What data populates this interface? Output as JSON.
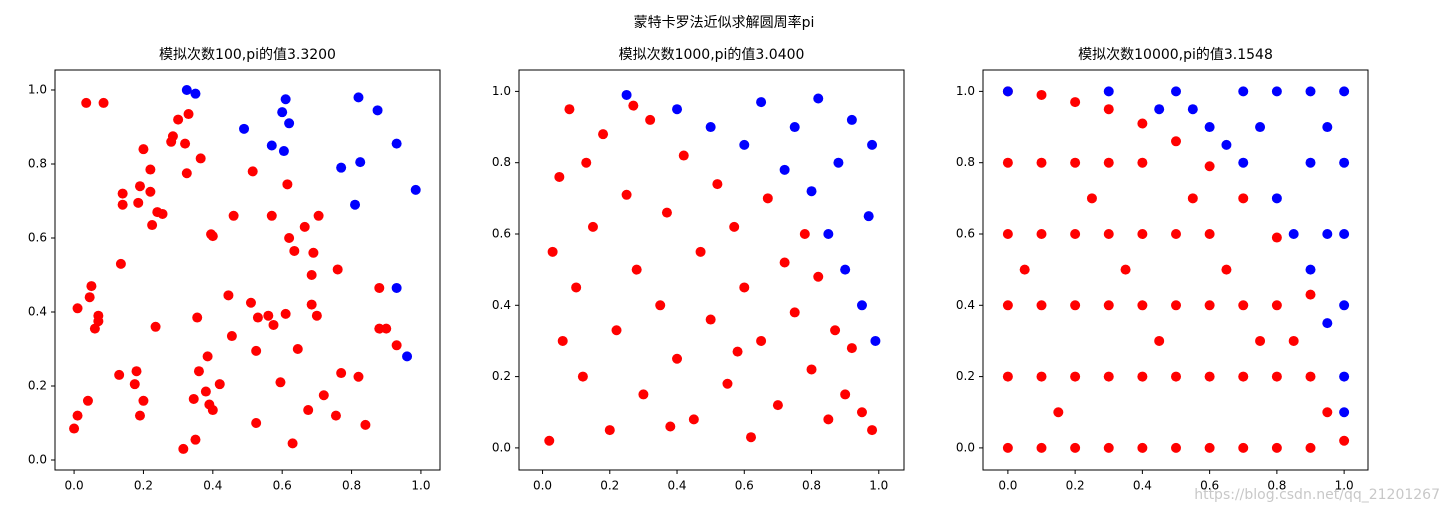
{
  "suptitle": "蒙特卡罗法近似求解圆周率pi",
  "watermark": "https://blog.csdn.net/qq_21201267",
  "chart_data": [
    {
      "type": "scatter",
      "title": "模拟次数100,pi的值3.3200",
      "xlim": [
        -0.055,
        1.055
      ],
      "ylim": [
        -0.027,
        1.054
      ],
      "xticks": [
        {
          "value": 0,
          "label": "0.0"
        },
        0.2,
        0.4,
        0.6,
        0.8,
        {
          "value": 1,
          "label": "1.0"
        }
      ],
      "yticks": [
        {
          "value": 0,
          "label": "0.0"
        },
        0.2,
        0.4,
        0.6,
        0.8,
        {
          "value": 1,
          "label": "1.0"
        }
      ],
      "series": [
        {
          "color": "#ff0000",
          "x": [
            0.01,
            0.0,
            0.01,
            0.04,
            0.035,
            0.085,
            0.05,
            0.045,
            0.06,
            0.07,
            0.07,
            0.13,
            0.135,
            0.14,
            0.14,
            0.18,
            0.175,
            0.19,
            0.185,
            0.19,
            0.2,
            0.2,
            0.22,
            0.22,
            0.225,
            0.24,
            0.255,
            0.235,
            0.28,
            0.285,
            0.3,
            0.32,
            0.325,
            0.33,
            0.315,
            0.35,
            0.345,
            0.355,
            0.36,
            0.365,
            0.38,
            0.385,
            0.39,
            0.395,
            0.4,
            0.4,
            0.42,
            0.445,
            0.455,
            0.46,
            0.51,
            0.515,
            0.525,
            0.53,
            0.525,
            0.56,
            0.57,
            0.575,
            0.595,
            0.61,
            0.62,
            0.615,
            0.63,
            0.635,
            0.645,
            0.665,
            0.675,
            0.685,
            0.69,
            0.685,
            0.7,
            0.705,
            0.72,
            0.76,
            0.755,
            0.77,
            0.82,
            0.84,
            0.88,
            0.88,
            0.9,
            0.93
          ],
          "y": [
            0.12,
            0.085,
            0.41,
            0.16,
            0.965,
            0.965,
            0.47,
            0.44,
            0.355,
            0.375,
            0.39,
            0.23,
            0.53,
            0.72,
            0.69,
            0.24,
            0.205,
            0.12,
            0.695,
            0.74,
            0.84,
            0.16,
            0.785,
            0.725,
            0.635,
            0.67,
            0.665,
            0.36,
            0.86,
            0.875,
            0.92,
            0.855,
            0.775,
            0.935,
            0.03,
            0.055,
            0.165,
            0.385,
            0.24,
            0.815,
            0.185,
            0.28,
            0.15,
            0.61,
            0.605,
            0.135,
            0.205,
            0.445,
            0.335,
            0.66,
            0.425,
            0.78,
            0.295,
            0.385,
            0.1,
            0.39,
            0.66,
            0.365,
            0.21,
            0.395,
            0.6,
            0.745,
            0.045,
            0.565,
            0.3,
            0.63,
            0.135,
            0.5,
            0.56,
            0.42,
            0.39,
            0.66,
            0.175,
            0.515,
            0.12,
            0.235,
            0.225,
            0.095,
            0.465,
            0.355,
            0.355,
            0.31
          ]
        },
        {
          "color": "#0000ff",
          "x": [
            0.325,
            0.35,
            0.49,
            0.57,
            0.6,
            0.605,
            0.61,
            0.62,
            0.77,
            0.81,
            0.82,
            0.825,
            0.875,
            0.93,
            0.93,
            0.96,
            0.985
          ],
          "y": [
            1.0,
            0.99,
            0.895,
            0.85,
            0.94,
            0.835,
            0.975,
            0.91,
            0.79,
            0.69,
            0.98,
            0.805,
            0.945,
            0.855,
            0.465,
            0.28,
            0.73
          ]
        }
      ]
    },
    {
      "type": "scatter",
      "title": "模拟次数1000,pi的值3.0400",
      "xlim": [
        -0.07,
        1.075
      ],
      "ylim": [
        -0.062,
        1.06
      ],
      "xticks": [
        {
          "value": 0,
          "label": "0.0"
        },
        0.2,
        0.4,
        0.6,
        0.8,
        {
          "value": 1,
          "label": "1.0"
        }
      ],
      "yticks": [
        {
          "value": 0,
          "label": "0.0"
        },
        0.2,
        0.4,
        0.6,
        0.8,
        {
          "value": 1,
          "label": "1.0"
        }
      ],
      "series": [
        {
          "color": "#ff0000",
          "x": [
            0.02,
            0.05,
            0.08,
            0.1,
            0.12,
            0.15,
            0.18,
            0.2,
            0.22,
            0.25,
            0.28,
            0.3,
            0.32,
            0.35,
            0.37,
            0.4,
            0.42,
            0.45,
            0.47,
            0.5,
            0.52,
            0.55,
            0.57,
            0.6,
            0.62,
            0.65,
            0.67,
            0.7,
            0.72,
            0.75,
            0.78,
            0.8,
            0.82,
            0.85,
            0.87,
            0.9,
            0.92,
            0.95,
            0.98,
            0.03,
            0.06,
            0.13,
            0.27,
            0.38,
            0.58
          ],
          "y": [
            0.02,
            0.76,
            0.95,
            0.45,
            0.2,
            0.62,
            0.88,
            0.05,
            0.33,
            0.71,
            0.5,
            0.15,
            0.92,
            0.4,
            0.66,
            0.25,
            0.82,
            0.08,
            0.55,
            0.36,
            0.74,
            0.18,
            0.62,
            0.45,
            0.03,
            0.3,
            0.7,
            0.12,
            0.52,
            0.38,
            0.6,
            0.22,
            0.48,
            0.08,
            0.33,
            0.15,
            0.28,
            0.1,
            0.05,
            0.55,
            0.3,
            0.8,
            0.96,
            0.06,
            0.27
          ]
        },
        {
          "color": "#0000ff",
          "x": [
            0.25,
            0.4,
            0.5,
            0.6,
            0.65,
            0.72,
            0.75,
            0.8,
            0.82,
            0.85,
            0.88,
            0.9,
            0.92,
            0.95,
            0.97,
            0.99,
            0.98
          ],
          "y": [
            0.99,
            0.95,
            0.9,
            0.85,
            0.97,
            0.78,
            0.9,
            0.72,
            0.98,
            0.6,
            0.8,
            0.5,
            0.92,
            0.4,
            0.65,
            0.3,
            0.85
          ]
        }
      ]
    },
    {
      "type": "scatter",
      "title": "模拟次数10000,pi的值3.1548",
      "xlim": [
        -0.074,
        1.071
      ],
      "ylim": [
        -0.062,
        1.06
      ],
      "xticks": [
        {
          "value": 0,
          "label": "0.0"
        },
        0.2,
        0.4,
        0.6,
        0.8,
        {
          "value": 1,
          "label": "1.0"
        }
      ],
      "yticks": [
        {
          "value": 0,
          "label": "0.0"
        },
        0.2,
        0.4,
        0.6,
        0.8,
        {
          "value": 1,
          "label": "1.0"
        }
      ],
      "series": [
        {
          "color": "#ff0000",
          "x": [
            0.0,
            0.0,
            0.0,
            0.0,
            0.0,
            0.0,
            0.1,
            0.1,
            0.1,
            0.1,
            0.1,
            0.1,
            0.2,
            0.2,
            0.2,
            0.2,
            0.2,
            0.2,
            0.3,
            0.3,
            0.3,
            0.3,
            0.3,
            0.3,
            0.4,
            0.4,
            0.4,
            0.4,
            0.4,
            0.4,
            0.5,
            0.5,
            0.5,
            0.5,
            0.5,
            0.6,
            0.6,
            0.6,
            0.6,
            0.6,
            0.7,
            0.7,
            0.7,
            0.7,
            0.8,
            0.8,
            0.8,
            0.8,
            0.9,
            0.9,
            0.9,
            1.0,
            0.05,
            0.15,
            0.25,
            0.35,
            0.45,
            0.55,
            0.65,
            0.75,
            0.85,
            0.95
          ],
          "y": [
            0.0,
            0.2,
            0.4,
            0.6,
            0.8,
            1.0,
            0.0,
            0.2,
            0.4,
            0.6,
            0.8,
            0.99,
            0.0,
            0.2,
            0.4,
            0.6,
            0.8,
            0.97,
            0.0,
            0.2,
            0.4,
            0.6,
            0.8,
            0.95,
            0.0,
            0.2,
            0.4,
            0.6,
            0.8,
            0.91,
            0.0,
            0.2,
            0.4,
            0.6,
            0.86,
            0.0,
            0.2,
            0.4,
            0.6,
            0.79,
            0.0,
            0.2,
            0.4,
            0.7,
            0.0,
            0.2,
            0.4,
            0.59,
            0.0,
            0.2,
            0.43,
            0.02,
            0.5,
            0.1,
            0.7,
            0.5,
            0.3,
            0.7,
            0.5,
            0.3,
            0.3,
            0.1
          ]
        },
        {
          "color": "#0000ff",
          "x": [
            0.0,
            0.3,
            0.5,
            0.6,
            0.7,
            0.8,
            0.8,
            0.9,
            0.9,
            0.9,
            1.0,
            1.0,
            1.0,
            1.0,
            1.0,
            1.0,
            0.45,
            0.65,
            0.75,
            0.85,
            0.95,
            0.95,
            0.95,
            0.7,
            0.55
          ],
          "y": [
            1.0,
            1.0,
            1.0,
            0.9,
            0.8,
            1.0,
            0.7,
            1.0,
            0.8,
            0.5,
            1.0,
            0.8,
            0.6,
            0.4,
            0.2,
            0.1,
            0.95,
            0.85,
            0.9,
            0.6,
            0.9,
            0.6,
            0.35,
            1.0,
            0.95
          ]
        }
      ]
    }
  ]
}
